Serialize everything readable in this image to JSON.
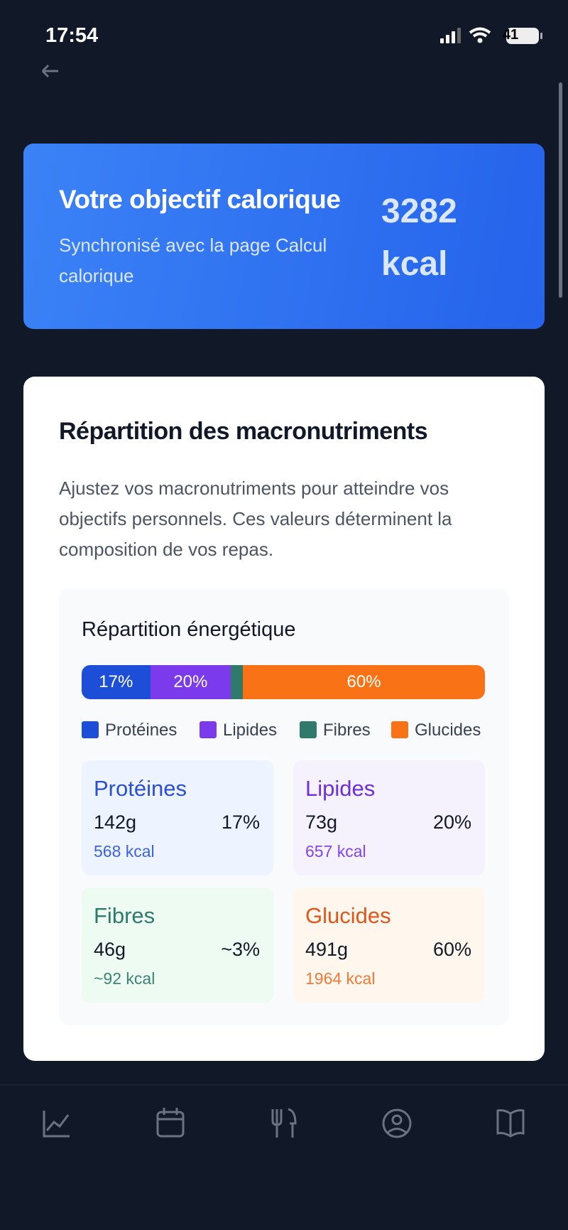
{
  "status": {
    "time": "17:54",
    "battery": "41"
  },
  "goal": {
    "title": "Votre objectif calorique",
    "subtitle": "Synchronisé avec la page Calcul calorique",
    "value": "3282",
    "unit": "kcal"
  },
  "macros": {
    "title": "Répartition des macronutriments",
    "description": "Ajustez vos macronutriments pour atteindre vos objectifs personnels. Ces valeurs déterminent la composition de vos repas.",
    "energy": {
      "title": "Répartition énergétique",
      "segments": [
        {
          "value": 17,
          "label": "17%",
          "color": "#1d4ed8"
        },
        {
          "value": 20,
          "label": "20%",
          "color": "#7c3aed"
        },
        {
          "value": 3,
          "color": "#2f7a6a"
        },
        {
          "value": 60,
          "label": "60%",
          "color": "#f97316"
        }
      ],
      "legend": [
        {
          "name": "Protéines",
          "color": "#1d4ed8"
        },
        {
          "name": "Lipides",
          "color": "#7c3aed"
        },
        {
          "name": "Fibres",
          "color": "#2f7a6a"
        },
        {
          "name": "Glucides",
          "color": "#f97316"
        }
      ]
    },
    "cards": [
      {
        "name": "Protéines",
        "grams": "142g",
        "percent": "17%",
        "kcal": "568 kcal",
        "bg": "#eef4ff",
        "title_color": "#2a4fd0",
        "kcal_color": "#3b64d8"
      },
      {
        "name": "Lipides",
        "grams": "73g",
        "percent": "20%",
        "kcal": "657 kcal",
        "bg": "#f5f2fe",
        "title_color": "#6d2fd6",
        "kcal_color": "#8046e6"
      },
      {
        "name": "Fibres",
        "grams": "46g",
        "percent": "~3%",
        "kcal": "~92 kcal",
        "bg": "#eefbf3",
        "title_color": "#2f7a6a",
        "kcal_color": "#3a8573"
      },
      {
        "name": "Glucides",
        "grams": "491g",
        "percent": "60%",
        "kcal": "1964 kcal",
        "bg": "#fff7ed",
        "title_color": "#e2561a",
        "kcal_color": "#f27a36"
      }
    ]
  }
}
